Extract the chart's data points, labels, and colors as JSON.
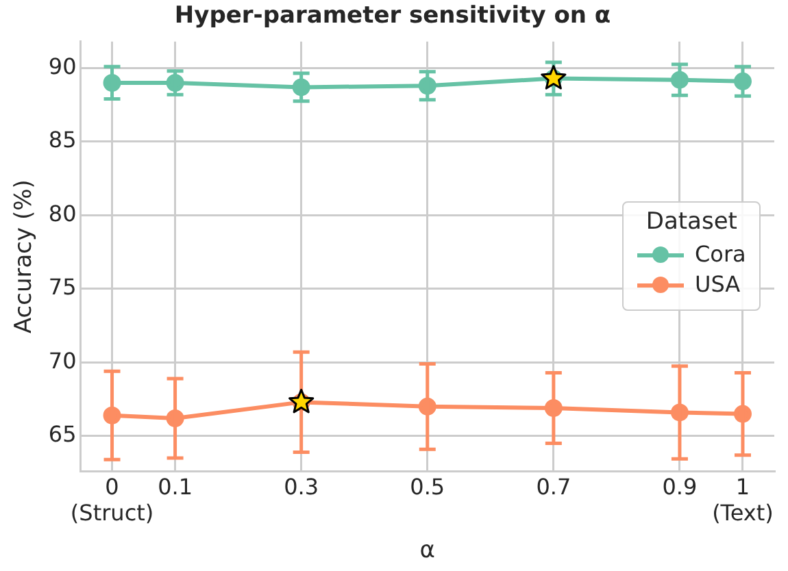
{
  "chart_data": {
    "type": "line",
    "title": "Hyper-parameter sensitivity on α",
    "xlabel": "α",
    "ylabel": "Accuracy (%)",
    "legend_title": "Dataset",
    "x": [
      0,
      0.1,
      0.3,
      0.5,
      0.7,
      0.9,
      1
    ],
    "xlim": [
      -0.05,
      1.05
    ],
    "xticks": [
      {
        "value": 0,
        "label": "0\n(Struct)"
      },
      0.1,
      0.3,
      0.5,
      0.7,
      0.9,
      {
        "value": 1,
        "label": "1\n(Text)"
      }
    ],
    "ylim": [
      62.6,
      91.8
    ],
    "yticks": [
      65,
      70,
      75,
      80,
      85,
      90
    ],
    "series": [
      {
        "name": "Cora",
        "color": "#66c2a5",
        "values": [
          89.0,
          89.0,
          88.7,
          88.8,
          89.3,
          89.2,
          89.1
        ],
        "errors": [
          1.1,
          0.8,
          0.95,
          0.95,
          1.1,
          1.05,
          1.0
        ]
      },
      {
        "name": "USA",
        "color": "#fc8d62",
        "values": [
          66.4,
          66.2,
          67.3,
          67.0,
          66.9,
          66.6,
          66.5
        ],
        "errors": [
          3.0,
          2.7,
          3.4,
          2.9,
          2.4,
          3.15,
          2.8
        ]
      },
      {
        "type": "scatter",
        "marker": "star",
        "color": "#ffd700",
        "x": [
          0.3,
          0.7
        ],
        "values": [
          67.3,
          89.3
        ]
      }
    ],
    "grid": true,
    "legend": "right",
    "marker": "circle",
    "line_style": "solid"
  }
}
